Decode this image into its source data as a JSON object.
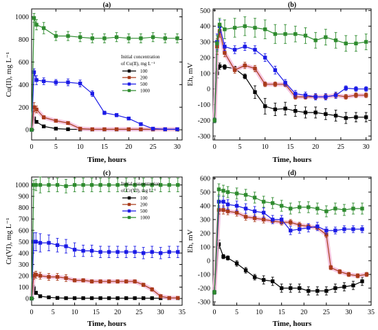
{
  "colors": {
    "100": "#000000",
    "200": "#a83a1a",
    "500": "#1a1ae6",
    "1000": "#2e8b2e",
    "band": "#f2b8d8"
  },
  "chart_data": [
    {
      "panel": "(a)",
      "type": "line",
      "xlabel": "Time, hours",
      "ylabel": "Cu(II), mg L⁻¹",
      "xlim": [
        0,
        31
      ],
      "ylim": [
        -90,
        1070
      ],
      "xticks": [
        0,
        5,
        10,
        15,
        20,
        25,
        30
      ],
      "yticks": [
        0,
        200,
        400,
        600,
        800,
        1000
      ],
      "grid": false,
      "legend": {
        "title1": "Initial concentration",
        "title2": "of Cu(II), mg L⁻¹",
        "labels": [
          "100",
          "200",
          "500",
          "1000"
        ],
        "placement": "center-right"
      },
      "series": [
        {
          "name": "100",
          "color_key": "100",
          "x": [
            0,
            0.5,
            1,
            2.5,
            5,
            7.5,
            10,
            12.5,
            15,
            17.5,
            20,
            22.5,
            25,
            27.5,
            30
          ],
          "y": [
            0,
            100,
            70,
            30,
            10,
            5,
            3,
            2,
            2,
            2,
            2,
            2,
            2,
            2,
            2
          ],
          "err": [
            5,
            15,
            10,
            8,
            5,
            3,
            3,
            3,
            3,
            3,
            3,
            3,
            3,
            3,
            3
          ]
        },
        {
          "name": "200",
          "color_key": "200",
          "x": [
            0,
            0.5,
            1,
            2.5,
            5,
            7.5,
            10,
            12.5,
            15,
            17.5,
            20,
            22.5,
            25,
            27.5,
            30
          ],
          "y": [
            0,
            200,
            180,
            110,
            80,
            60,
            10,
            5,
            5,
            5,
            5,
            5,
            5,
            5,
            5
          ],
          "err": [
            5,
            40,
            30,
            15,
            10,
            10,
            5,
            5,
            5,
            5,
            5,
            5,
            5,
            5,
            5
          ]
        },
        {
          "name": "500",
          "color_key": "500",
          "x": [
            0,
            0.5,
            1,
            2.5,
            5,
            7.5,
            10,
            12.5,
            15,
            17.5,
            20,
            22.5,
            25,
            27.5,
            30
          ],
          "y": [
            0,
            510,
            440,
            430,
            420,
            420,
            410,
            320,
            150,
            130,
            100,
            50,
            10,
            5,
            5
          ],
          "err": [
            5,
            30,
            40,
            30,
            25,
            30,
            30,
            25,
            15,
            15,
            10,
            10,
            5,
            5,
            5
          ]
        },
        {
          "name": "1000",
          "color_key": "1000",
          "x": [
            0,
            0.5,
            1,
            2.5,
            5,
            7.5,
            10,
            12.5,
            15,
            17.5,
            20,
            22.5,
            25,
            27.5,
            30
          ],
          "y": [
            0,
            990,
            930,
            900,
            830,
            830,
            820,
            810,
            810,
            820,
            810,
            810,
            820,
            810,
            810
          ],
          "err": [
            5,
            40,
            45,
            50,
            40,
            40,
            40,
            40,
            40,
            40,
            40,
            40,
            40,
            40,
            40
          ]
        }
      ]
    },
    {
      "panel": "(b)",
      "type": "line",
      "xlabel": "Time, hours",
      "ylabel": "Eh, mV",
      "xlim": [
        -0.3,
        31
      ],
      "ylim": [
        -325,
        510
      ],
      "xticks": [
        0,
        5,
        10,
        15,
        20,
        25,
        30
      ],
      "yticks": [
        -300,
        -200,
        -100,
        0,
        100,
        200,
        300,
        400,
        500
      ],
      "grid": false,
      "series": [
        {
          "name": "100",
          "color_key": "100",
          "x": [
            0,
            0.5,
            1,
            2,
            4,
            6,
            8,
            10,
            12,
            14,
            16,
            18,
            20,
            22,
            24,
            26,
            28,
            30
          ],
          "y": [
            -200,
            100,
            145,
            140,
            130,
            80,
            -20,
            -110,
            -130,
            -125,
            -140,
            -150,
            -150,
            -160,
            -170,
            -185,
            -180,
            -180
          ],
          "err": [
            15,
            30,
            20,
            15,
            15,
            15,
            40,
            50,
            40,
            40,
            35,
            35,
            35,
            35,
            35,
            35,
            30,
            30
          ]
        },
        {
          "name": "200",
          "color_key": "200",
          "x": [
            0,
            0.5,
            1,
            2,
            4,
            6,
            8,
            10,
            12,
            14,
            16,
            18,
            20,
            22,
            24,
            26,
            28,
            30
          ],
          "y": [
            -200,
            270,
            370,
            230,
            120,
            150,
            130,
            30,
            30,
            30,
            -50,
            -50,
            -50,
            -50,
            -40,
            -50,
            -40,
            -40
          ],
          "err": [
            15,
            50,
            40,
            25,
            20,
            20,
            20,
            15,
            15,
            15,
            15,
            15,
            15,
            15,
            15,
            15,
            15,
            15
          ]
        },
        {
          "name": "500",
          "color_key": "500",
          "x": [
            0,
            0.5,
            1,
            2,
            4,
            6,
            8,
            10,
            12,
            14,
            16,
            18,
            20,
            22,
            24,
            26,
            28,
            30
          ],
          "y": [
            -200,
            300,
            400,
            270,
            250,
            270,
            250,
            200,
            120,
            40,
            -30,
            -40,
            -50,
            -50,
            -40,
            5,
            0,
            0
          ],
          "err": [
            15,
            50,
            40,
            25,
            25,
            25,
            25,
            25,
            25,
            20,
            20,
            20,
            20,
            20,
            20,
            15,
            15,
            15
          ]
        },
        {
          "name": "1000",
          "color_key": "1000",
          "x": [
            0,
            0.5,
            1,
            2,
            4,
            6,
            8,
            10,
            12,
            14,
            16,
            18,
            20,
            22,
            24,
            26,
            28,
            30
          ],
          "y": [
            -200,
            290,
            410,
            380,
            390,
            400,
            390,
            380,
            350,
            350,
            350,
            340,
            310,
            330,
            310,
            290,
            290,
            300
          ],
          "err": [
            15,
            50,
            40,
            60,
            60,
            60,
            60,
            60,
            60,
            60,
            50,
            50,
            50,
            50,
            50,
            50,
            50,
            50
          ]
        }
      ]
    },
    {
      "panel": "(c)",
      "type": "line",
      "xlabel": "Time, hours",
      "ylabel": "Cr(VI), mg L⁻¹",
      "xlim": [
        0,
        35
      ],
      "ylim": [
        -60,
        1070
      ],
      "xticks": [
        0,
        5,
        10,
        15,
        20,
        25,
        30,
        35
      ],
      "yticks": [
        0,
        100,
        200,
        300,
        400,
        500,
        600,
        700,
        800,
        900,
        1000
      ],
      "grid": false,
      "legend": {
        "title1": "Initial concentration",
        "title2": "of Cr(VI), mg L⁻¹",
        "labels": [
          "100",
          "200",
          "500",
          "1000"
        ],
        "placement": "center-right"
      },
      "series": [
        {
          "name": "100",
          "color_key": "100",
          "x": [
            0,
            0.5,
            1,
            2,
            4,
            6,
            8,
            10,
            12,
            14,
            16,
            18,
            20,
            22,
            24,
            26,
            28,
            30,
            32,
            34
          ],
          "y": [
            0,
            90,
            50,
            20,
            10,
            5,
            3,
            3,
            3,
            3,
            3,
            3,
            3,
            3,
            3,
            3,
            3,
            3,
            3,
            3
          ],
          "err": [
            5,
            25,
            15,
            10,
            5,
            5,
            3,
            3,
            3,
            3,
            3,
            3,
            3,
            3,
            3,
            3,
            3,
            3,
            3,
            3
          ]
        },
        {
          "name": "200",
          "color_key": "200",
          "x": [
            0,
            0.5,
            1,
            2,
            4,
            6,
            8,
            10,
            12,
            14,
            16,
            18,
            20,
            22,
            24,
            26,
            28,
            30,
            32,
            34
          ],
          "y": [
            0,
            200,
            210,
            200,
            190,
            190,
            180,
            160,
            160,
            150,
            150,
            150,
            150,
            150,
            150,
            120,
            80,
            20,
            5,
            5
          ],
          "err": [
            5,
            30,
            30,
            30,
            30,
            30,
            30,
            15,
            15,
            15,
            15,
            15,
            15,
            15,
            15,
            15,
            15,
            15,
            5,
            5
          ]
        },
        {
          "name": "500",
          "color_key": "500",
          "x": [
            0,
            0.5,
            1,
            2,
            4,
            6,
            8,
            10,
            12,
            14,
            16,
            18,
            20,
            22,
            24,
            26,
            28,
            30,
            32,
            34
          ],
          "y": [
            0,
            500,
            500,
            490,
            490,
            470,
            460,
            430,
            420,
            420,
            410,
            410,
            410,
            410,
            410,
            400,
            410,
            400,
            410,
            410
          ],
          "err": [
            5,
            80,
            80,
            80,
            70,
            60,
            60,
            60,
            50,
            50,
            50,
            50,
            50,
            50,
            50,
            50,
            50,
            50,
            50,
            50
          ]
        },
        {
          "name": "1000",
          "color_key": "1000",
          "x": [
            0,
            0.5,
            1,
            2,
            4,
            6,
            8,
            10,
            12,
            14,
            16,
            18,
            20,
            22,
            24,
            26,
            28,
            30,
            32,
            34
          ],
          "y": [
            0,
            1000,
            1000,
            1000,
            1000,
            1000,
            990,
            1000,
            1000,
            1000,
            1000,
            1000,
            1000,
            1000,
            1000,
            1000,
            1000,
            1000,
            1000,
            1000
          ],
          "err": [
            5,
            40,
            50,
            70,
            60,
            60,
            60,
            60,
            60,
            60,
            60,
            60,
            60,
            60,
            60,
            60,
            60,
            60,
            60,
            60
          ]
        }
      ]
    },
    {
      "panel": "(d)",
      "type": "line",
      "xlabel": "Time, hours",
      "ylabel": "Eh, mV",
      "xlim": [
        -0.3,
        35
      ],
      "ylim": [
        -325,
        610
      ],
      "xticks": [
        0,
        5,
        10,
        15,
        20,
        25,
        30,
        35
      ],
      "yticks": [
        -300,
        -200,
        -100,
        0,
        100,
        200,
        300,
        400,
        500,
        600
      ],
      "grid": false,
      "series": [
        {
          "name": "100",
          "color_key": "100",
          "x": [
            0,
            1,
            2,
            3,
            5,
            7,
            9,
            11,
            13,
            15,
            17,
            19,
            21,
            23,
            25,
            27,
            29,
            31,
            33
          ],
          "y": [
            -230,
            120,
            30,
            20,
            -20,
            -70,
            -120,
            -140,
            -150,
            -200,
            -200,
            -200,
            -220,
            -220,
            -220,
            -200,
            -190,
            -180,
            -150
          ],
          "err": [
            15,
            30,
            15,
            15,
            20,
            20,
            20,
            30,
            30,
            30,
            30,
            30,
            30,
            30,
            30,
            30,
            30,
            30,
            30
          ]
        },
        {
          "name": "200",
          "color_key": "200",
          "x": [
            0,
            1,
            2,
            3,
            5,
            7,
            9,
            11,
            13,
            15,
            17,
            19,
            21,
            23,
            25,
            26,
            28,
            30,
            32,
            34
          ],
          "y": [
            -230,
            370,
            370,
            360,
            350,
            320,
            310,
            300,
            290,
            280,
            280,
            260,
            250,
            240,
            190,
            -50,
            -80,
            -100,
            -110,
            -100
          ],
          "err": [
            15,
            30,
            30,
            25,
            25,
            25,
            25,
            25,
            20,
            20,
            20,
            20,
            20,
            20,
            20,
            15,
            15,
            15,
            15,
            15
          ]
        },
        {
          "name": "500",
          "color_key": "500",
          "x": [
            0,
            1,
            2,
            3,
            5,
            7,
            9,
            11,
            13,
            15,
            17,
            19,
            21,
            23,
            25,
            27,
            29,
            31,
            33
          ],
          "y": [
            -230,
            430,
            430,
            410,
            400,
            380,
            360,
            350,
            300,
            300,
            220,
            230,
            240,
            250,
            220,
            220,
            230,
            230,
            230
          ],
          "err": [
            15,
            40,
            40,
            35,
            35,
            35,
            35,
            35,
            30,
            30,
            30,
            30,
            30,
            30,
            25,
            25,
            25,
            25,
            25
          ]
        },
        {
          "name": "1000",
          "color_key": "1000",
          "x": [
            0,
            1,
            2,
            3,
            5,
            7,
            9,
            11,
            13,
            15,
            17,
            19,
            21,
            23,
            25,
            27,
            29,
            31,
            33
          ],
          "y": [
            -230,
            520,
            510,
            500,
            490,
            480,
            460,
            430,
            420,
            400,
            380,
            390,
            390,
            380,
            360,
            380,
            370,
            380,
            380
          ],
          "err": [
            15,
            40,
            40,
            40,
            40,
            40,
            40,
            40,
            40,
            40,
            40,
            40,
            40,
            40,
            40,
            40,
            40,
            40,
            40
          ]
        }
      ]
    }
  ]
}
